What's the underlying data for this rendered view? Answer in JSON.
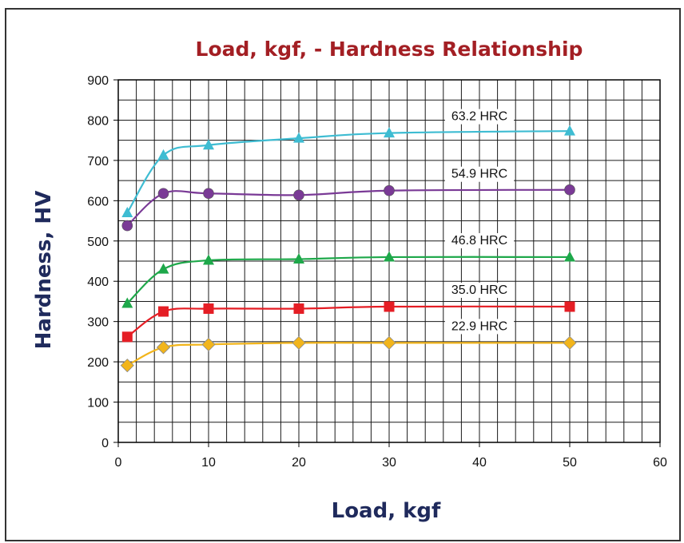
{
  "chart_data": {
    "type": "line",
    "title": "Load, kgf, - Hardness Relationship",
    "xlabel": "Load, kgf",
    "ylabel": "Hardness, HV",
    "xlim": [
      0,
      60
    ],
    "ylim": [
      0,
      900
    ],
    "xticks": [
      0,
      10,
      20,
      30,
      40,
      50,
      60
    ],
    "yticks": [
      0,
      100,
      200,
      300,
      400,
      500,
      600,
      700,
      800,
      900
    ],
    "grid": true,
    "colors": {
      "title": "#a31f24",
      "axis_title": "#1f2a5c",
      "grid": "#1a1a1a"
    },
    "series": [
      {
        "name": "63.2 HRC",
        "color": "#3ebcd2",
        "marker": "triangle",
        "x": [
          1,
          5,
          10,
          20,
          30,
          50
        ],
        "y": [
          570,
          713,
          738,
          755,
          768,
          773
        ]
      },
      {
        "name": "54.9 HRC",
        "color": "#7a3a96",
        "marker": "circle",
        "x": [
          1,
          5,
          10,
          20,
          30,
          50
        ],
        "y": [
          538,
          618,
          618,
          614,
          625,
          627
        ]
      },
      {
        "name": "46.8 HRC",
        "color": "#1ea84a",
        "marker": "triangle",
        "x": [
          1,
          5,
          10,
          20,
          30,
          50
        ],
        "y": [
          345,
          430,
          452,
          455,
          460,
          460
        ]
      },
      {
        "name": "35.0 HRC",
        "color": "#e51e25",
        "marker": "square",
        "x": [
          1,
          5,
          10,
          20,
          30,
          50
        ],
        "y": [
          262,
          325,
          332,
          332,
          337,
          337
        ]
      },
      {
        "name": "22.9 HRC",
        "color": "#f2b51b",
        "marker": "diamond",
        "x": [
          1,
          5,
          10,
          20,
          30,
          50
        ],
        "y": [
          191,
          236,
          243,
          247,
          247,
          247
        ]
      }
    ]
  }
}
